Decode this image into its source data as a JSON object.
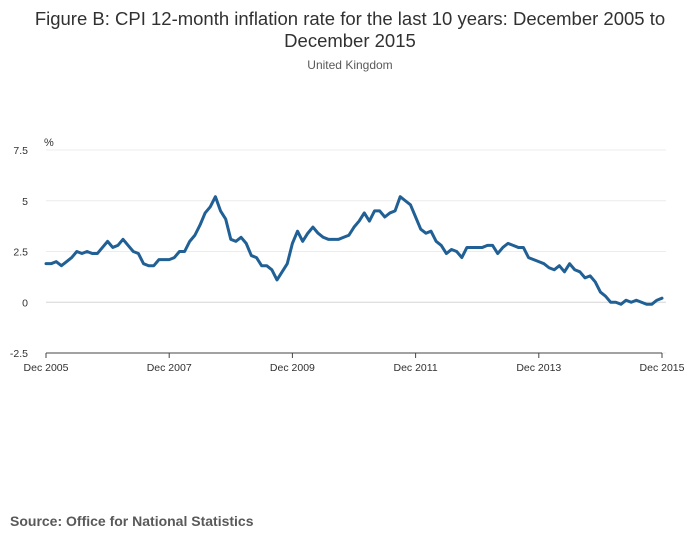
{
  "chart_data": {
    "type": "line",
    "title": "Figure B: CPI 12-month inflation rate for the last 10 years: December 2005 to December 2015",
    "subtitle": "United Kingdom",
    "ylabel": "%",
    "xlabel": "",
    "ylim": [
      -2.5,
      7.5
    ],
    "yticks": [
      {
        "value": -2.5,
        "label": "-2.5"
      },
      {
        "value": 0,
        "label": "0"
      },
      {
        "value": 2.5,
        "label": "2.5"
      },
      {
        "value": 5,
        "label": "5"
      },
      {
        "value": 7.5,
        "label": "7.5"
      }
    ],
    "xticks": [
      {
        "index": 0,
        "label": "Dec 2005"
      },
      {
        "index": 24,
        "label": "Dec 2007"
      },
      {
        "index": 48,
        "label": "Dec 2009"
      },
      {
        "index": 72,
        "label": "Dec 2011"
      },
      {
        "index": 96,
        "label": "Dec 2013"
      },
      {
        "index": 120,
        "label": "Dec 2015"
      }
    ],
    "grid": true,
    "legend": "none",
    "line_color": "#206095",
    "series": [
      {
        "values": [
          1.9,
          1.9,
          2.0,
          1.8,
          2.0,
          2.2,
          2.5,
          2.4,
          2.5,
          2.4,
          2.4,
          2.7,
          3.0,
          2.7,
          2.8,
          3.1,
          2.8,
          2.5,
          2.4,
          1.9,
          1.8,
          1.8,
          2.1,
          2.1,
          2.1,
          2.2,
          2.5,
          2.5,
          3.0,
          3.3,
          3.8,
          4.4,
          4.7,
          5.2,
          4.5,
          4.1,
          3.1,
          3.0,
          3.2,
          2.9,
          2.3,
          2.2,
          1.8,
          1.8,
          1.6,
          1.1,
          1.5,
          1.9,
          2.9,
          3.5,
          3.0,
          3.4,
          3.7,
          3.4,
          3.2,
          3.1,
          3.1,
          3.1,
          3.2,
          3.3,
          3.7,
          4.0,
          4.4,
          4.0,
          4.5,
          4.5,
          4.2,
          4.4,
          4.5,
          5.2,
          5.0,
          4.8,
          4.2,
          3.6,
          3.4,
          3.5,
          3.0,
          2.8,
          2.4,
          2.6,
          2.5,
          2.2,
          2.7,
          2.7,
          2.7,
          2.7,
          2.8,
          2.8,
          2.4,
          2.7,
          2.9,
          2.8,
          2.7,
          2.7,
          2.2,
          2.1,
          2.0,
          1.9,
          1.7,
          1.6,
          1.8,
          1.5,
          1.9,
          1.6,
          1.5,
          1.2,
          1.3,
          1.0,
          0.5,
          0.3,
          0.0,
          0.0,
          -0.1,
          0.1,
          0.0,
          0.1,
          0.0,
          -0.1,
          -0.1,
          0.1,
          0.2
        ]
      }
    ]
  },
  "source": "Source: Office for National Statistics"
}
